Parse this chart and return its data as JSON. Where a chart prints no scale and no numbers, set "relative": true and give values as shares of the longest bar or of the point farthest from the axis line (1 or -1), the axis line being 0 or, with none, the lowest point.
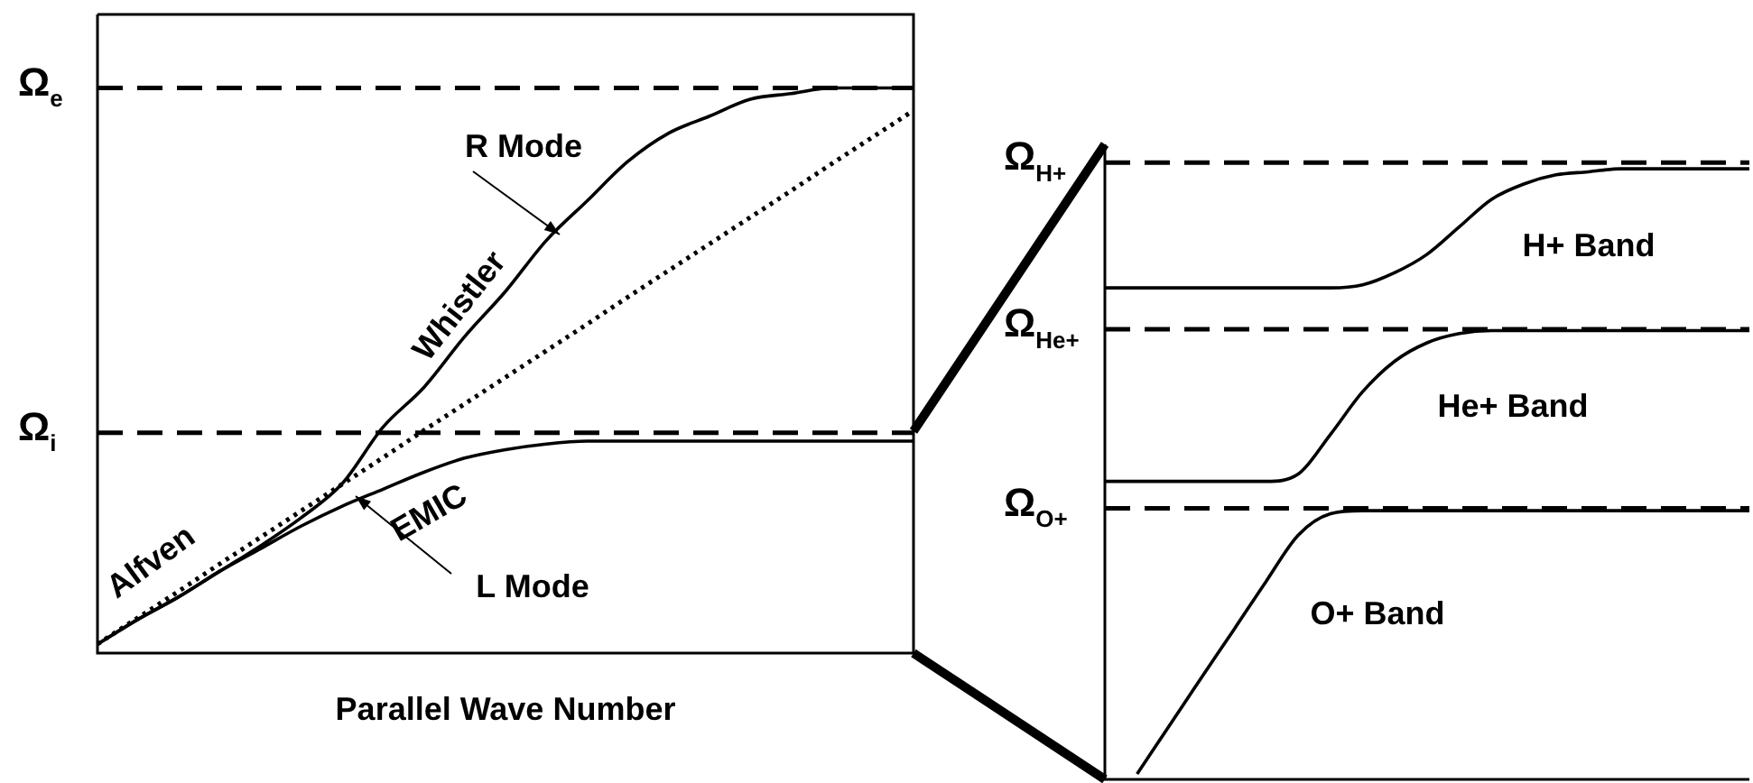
{
  "chart_data": [
    {
      "type": "line",
      "relative": true,
      "xlabel": "Parallel Wave Number",
      "legend": false,
      "marker": "none",
      "categories": [
        null,
        null,
        null,
        null,
        null,
        null,
        null,
        null,
        null,
        null,
        null,
        null,
        null,
        null,
        null,
        null,
        null,
        null,
        null,
        null,
        null
      ],
      "series": [
        {
          "color": "#000000",
          "line_style": "solid",
          "values": [
            0.016,
            0.06,
            0.1,
            0.145,
            0.19,
            0.24,
            0.3,
            0.4,
            0.47,
            0.56,
            0.64,
            0.73,
            0.8,
            0.87,
            0.92,
            0.95,
            0.98,
            0.99,
            1,
            1,
            1
          ]
        },
        {
          "color": "#000000",
          "line_style": "solid",
          "values": [
            0.016,
            0.06,
            0.1,
            0.145,
            0.185,
            0.225,
            0.26,
            0.29,
            0.32,
            0.345,
            0.36,
            0.37,
            0.375,
            0.375,
            0.375,
            0.375,
            0.375,
            0.375,
            0.375,
            0.375,
            0.375
          ]
        },
        {
          "name": "Alfven",
          "color": "#000000",
          "line_style": "dotted",
          "values": [
            0.016,
            0.063,
            0.11,
            0.158,
            0.205,
            0.252,
            0.299,
            0.346,
            0.394,
            0.441,
            0.488,
            0.535,
            0.582,
            0.63,
            0.677,
            0.724,
            0.771,
            0.818,
            0.866,
            0.913,
            0.96
          ]
        }
      ],
      "ref_lines": [
        {
          "axis": "y",
          "value": 1,
          "label": "Ω$_{e}$",
          "line_style": "dashed",
          "color": "#000000"
        },
        {
          "axis": "y",
          "value": 0.39,
          "label": "Ω$_{i}$",
          "line_style": "dashed",
          "color": "#000000"
        }
      ],
      "annotations": [
        "R Mode",
        "Whistler",
        "EMIC",
        "L Mode"
      ]
    },
    {
      "type": "line",
      "relative": true,
      "legend": false,
      "marker": "none",
      "categories": [
        null,
        null,
        null,
        null,
        null,
        null,
        null,
        null,
        null,
        null,
        null,
        null,
        null,
        null,
        null,
        null,
        null,
        null,
        null,
        null,
        null
      ],
      "series": [
        {
          "name": "H+ Band",
          "color": "#000000",
          "line_style": "solid",
          "values": [
            0.805,
            0.805,
            0.805,
            0.805,
            0.805,
            0.805,
            0.805,
            0.805,
            0.81,
            0.83,
            0.86,
            0.905,
            0.95,
            0.975,
            0.99,
            0.995,
            1,
            1,
            1,
            1,
            1
          ]
        },
        {
          "name": "He+ Band",
          "color": "#000000",
          "line_style": "solid",
          "values": [
            0.488,
            0.488,
            0.488,
            0.488,
            0.488,
            0.488,
            0.5,
            0.565,
            0.635,
            0.685,
            0.715,
            0.73,
            0.735,
            0.735,
            0.735,
            0.735,
            0.735,
            0.735,
            0.735,
            0.735,
            0.735
          ]
        },
        {
          "name": "O+ Band",
          "color": "#000000",
          "line_style": "solid",
          "values": [
            null,
            0.009,
            0.088,
            0.167,
            0.245,
            0.324,
            0.4,
            0.435,
            0.44,
            0.44,
            0.44,
            0.44,
            0.44,
            0.44,
            0.44,
            0.44,
            0.44,
            0.44,
            0.44,
            0.44,
            0.44
          ]
        }
      ],
      "ref_lines": [
        {
          "axis": "y",
          "value": 1.01,
          "label": "Ω$_{H+}$",
          "line_style": "dashed",
          "color": "#000000"
        },
        {
          "axis": "y",
          "value": 0.737,
          "label": "Ω$_{He+}$",
          "line_style": "dashed",
          "color": "#000000"
        },
        {
          "axis": "y",
          "value": 0.444,
          "label": "Ω$_{O+}$",
          "line_style": "dashed",
          "color": "#000000"
        }
      ]
    }
  ]
}
